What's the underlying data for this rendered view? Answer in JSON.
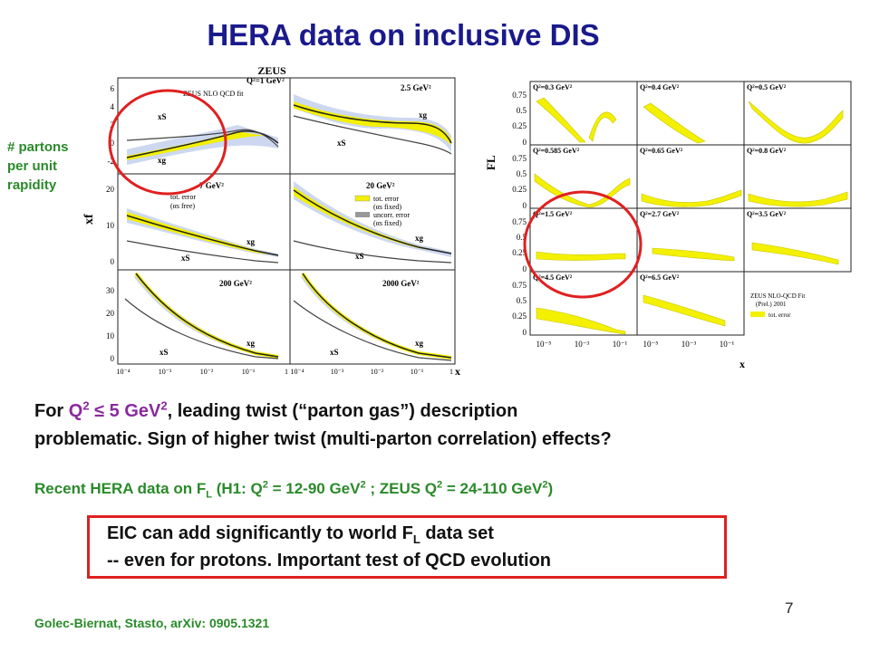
{
  "title": "HERA data on inclusive DIS",
  "side_note": [
    "# partons",
    "per unit",
    "rapidity"
  ],
  "left_figure": {
    "header": "ZEUS",
    "y_axis_label": "xf",
    "x_axis_label": "x",
    "panels": [
      {
        "label": "Q²=1 GeV²",
        "legend": "ZEUS NLO QCD fit",
        "curve_labels": [
          "xS",
          "xg"
        ]
      },
      {
        "label": "2.5 GeV²",
        "curve_labels": [
          "xg",
          "xS"
        ]
      },
      {
        "label": "7 GeV²",
        "legend": [
          "tot. error",
          "(αs free)"
        ],
        "curve_labels": [
          "xg",
          "xS"
        ]
      },
      {
        "label": "20 GeV²",
        "legend": [
          "tot. error",
          "(αs fixed)",
          "uncorr. error",
          "(αs fixed)"
        ],
        "curve_labels": [
          "xg",
          "xS"
        ]
      },
      {
        "label": "200 GeV²",
        "curve_labels": [
          "xg",
          "xS"
        ]
      },
      {
        "label": "2000 GeV²",
        "curve_labels": [
          "xg",
          "xS"
        ]
      }
    ],
    "y_ticks_row1": [
      "6",
      "4",
      "2",
      "0",
      "-2"
    ],
    "y_ticks_row2": [
      "20",
      "10",
      "0"
    ],
    "y_ticks_row3": [
      "30",
      "20",
      "10",
      "0"
    ],
    "x_ticks": [
      "10⁻⁴",
      "10⁻³",
      "10⁻²",
      "10⁻¹",
      "1"
    ]
  },
  "right_figure": {
    "y_axis_label": "FL",
    "x_axis_label": "x",
    "panels": [
      "Q²=0.3 GeV²",
      "Q²=0.4 GeV²",
      "Q²=0.5 GeV²",
      "Q²=0.585 GeV²",
      "Q²=0.65 GeV²",
      "Q²=0.8 GeV²",
      "Q²=1.5 GeV²",
      "Q²=2.7 GeV²",
      "Q²=3.5 GeV²",
      "Q²=4.5 GeV²",
      "Q²=6.5 GeV²",
      ""
    ],
    "y_ticks": [
      "0.75",
      "0.5",
      "0.25",
      "0"
    ],
    "x_ticks": [
      "10⁻⁵",
      "10⁻³",
      "10⁻¹"
    ],
    "legend": [
      "ZEUS NLO-QCD Fit",
      "(Prel.) 2001",
      "tot. error"
    ]
  },
  "main_text": {
    "line1_prefix": "For ",
    "q": "Q",
    "q_sup": "2",
    "condition": " ≤ 5 GeV",
    "cond_sup": "2",
    "line1_suffix": ", leading twist (“parton gas”) description",
    "line2": "problematic. Sign of higher twist (multi-parton correlation) effects?"
  },
  "recent": {
    "prefix": "Recent HERA data on F",
    "f_sub": "L",
    "h1": "  (H1: Q",
    "h1_sup": "2",
    "h1_range": " = 12-90 GeV",
    "h1_sup2": "2",
    "zeus": " ; ZEUS Q",
    "zeus_sup": "2",
    "zeus_range": " = 24-110 GeV",
    "zeus_sup2": "2",
    "close": ")"
  },
  "eic": {
    "line1_prefix": "EIC can add significantly to world F",
    "line1_sub": "L",
    "line1_suffix": " data set",
    "line2": "-- even for protons. Important test of QCD evolution"
  },
  "citation": "Golec-Biernat, Stasto, arXiv: 0905.1321",
  "page_number": "7",
  "colors": {
    "title": "#1a1a8c",
    "green": "#2a8a2a",
    "red": "#e02020",
    "purple": "#8a2a9e",
    "band_yellow": "#f3f000",
    "band_blue": "#cdd8f0"
  }
}
